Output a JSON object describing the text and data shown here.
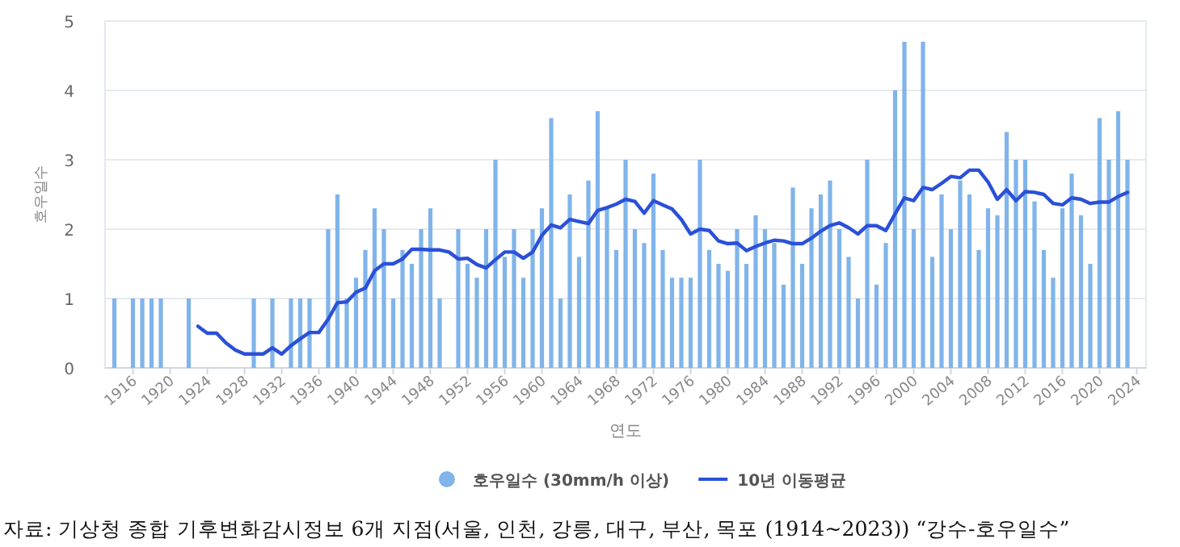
{
  "chart_data": {
    "type": "bar",
    "xlabel": "연도",
    "ylabel": "호우일수",
    "xlim": [
      1913,
      2025
    ],
    "xticks": [
      1916,
      1920,
      1924,
      1928,
      1932,
      1936,
      1940,
      1944,
      1948,
      1952,
      1956,
      1960,
      1964,
      1968,
      1972,
      1976,
      1980,
      1984,
      1988,
      1992,
      1996,
      2000,
      2004,
      2008,
      2012,
      2016,
      2020,
      2024
    ],
    "ylim": [
      0,
      5
    ],
    "yticks": [
      0,
      1,
      2,
      3,
      4,
      5
    ],
    "grid": "y",
    "legend": "bottom",
    "series": [
      {
        "name": "호우일수 (30mm/h 이상)",
        "color": "#80b4ea",
        "x": [
          1914,
          1916,
          1917,
          1918,
          1919,
          1922,
          1929,
          1931,
          1933,
          1934,
          1935,
          1937,
          1938,
          1939,
          1940,
          1941,
          1942,
          1943,
          1944,
          1945,
          1946,
          1947,
          1948,
          1949,
          1951,
          1952,
          1953,
          1954,
          1955,
          1956,
          1957,
          1958,
          1959,
          1960,
          1961,
          1962,
          1963,
          1964,
          1965,
          1966,
          1967,
          1968,
          1969,
          1970,
          1971,
          1972,
          1973,
          1974,
          1975,
          1976,
          1977,
          1978,
          1979,
          1980,
          1981,
          1982,
          1983,
          1984,
          1985,
          1986,
          1987,
          1988,
          1989,
          1990,
          1991,
          1992,
          1993,
          1994,
          1995,
          1996,
          1997,
          1998,
          1999,
          2000,
          2001,
          2002,
          2003,
          2004,
          2005,
          2006,
          2007,
          2008,
          2009,
          2010,
          2011,
          2012,
          2013,
          2014,
          2015,
          2016,
          2017,
          2018,
          2019,
          2020,
          2021,
          2022,
          2023
        ],
        "values": [
          1,
          1,
          1,
          1,
          1,
          1,
          1,
          1,
          1,
          1,
          1,
          2,
          2.5,
          1,
          1.3,
          1.7,
          2.3,
          2,
          1,
          1.7,
          1.5,
          2,
          2.3,
          1,
          2,
          1.5,
          1.3,
          2,
          3,
          1.6,
          2,
          1.3,
          2,
          2.3,
          3.6,
          1,
          2.5,
          1.6,
          2.7,
          3.7,
          2.3,
          1.7,
          3,
          2,
          1.8,
          2.8,
          1.7,
          1.3,
          1.3,
          1.3,
          3,
          1.7,
          1.5,
          1.4,
          2,
          1.5,
          2.2,
          2,
          1.8,
          1.2,
          2.6,
          1.5,
          2.3,
          2.5,
          2.7,
          2,
          1.6,
          1,
          3,
          1.2,
          1.8,
          4,
          4.7,
          2,
          4.7,
          1.6,
          2.5,
          2,
          2.7,
          2.5,
          1.7,
          2.3,
          2.2,
          3.4,
          3,
          3,
          2.4,
          1.7,
          1.3,
          2.3,
          2.8,
          2.2,
          1.5,
          3.6,
          3,
          3.7,
          3
        ]
      },
      {
        "name": "10년 이동평균",
        "type": "line",
        "color": "#2b50d8",
        "marker": "none",
        "x": [
          1923,
          1924,
          1925,
          1926,
          1927,
          1928,
          1929,
          1930,
          1931,
          1932,
          1933,
          1934,
          1935,
          1936,
          1937,
          1938,
          1939,
          1940,
          1941,
          1942,
          1943,
          1944,
          1945,
          1946,
          1947,
          1948,
          1949,
          1950,
          1951,
          1952,
          1953,
          1954,
          1955,
          1956,
          1957,
          1958,
          1959,
          1960,
          1961,
          1962,
          1963,
          1964,
          1965,
          1966,
          1967,
          1968,
          1969,
          1970,
          1971,
          1972,
          1973,
          1974,
          1975,
          1976,
          1977,
          1978,
          1979,
          1980,
          1981,
          1982,
          1983,
          1984,
          1985,
          1986,
          1987,
          1988,
          1989,
          1990,
          1991,
          1992,
          1993,
          1994,
          1995,
          1996,
          1997,
          1998,
          1999,
          2000,
          2001,
          2002,
          2003,
          2004,
          2005,
          2006,
          2007,
          2008,
          2009,
          2010,
          2011,
          2012,
          2013,
          2014,
          2015,
          2016,
          2017,
          2018,
          2019,
          2020,
          2021,
          2022,
          2023
        ],
        "values": [
          0.6,
          0.5,
          0.5,
          0.36,
          0.26,
          0.2,
          0.2,
          0.2,
          0.29,
          0.2,
          0.32,
          0.42,
          0.51,
          0.51,
          0.7,
          0.94,
          0.95,
          1.09,
          1.15,
          1.4,
          1.5,
          1.5,
          1.57,
          1.71,
          1.71,
          1.7,
          1.7,
          1.67,
          1.57,
          1.58,
          1.49,
          1.44,
          1.56,
          1.67,
          1.67,
          1.58,
          1.67,
          1.91,
          2.06,
          2.02,
          2.14,
          2.11,
          2.08,
          2.27,
          2.31,
          2.36,
          2.43,
          2.4,
          2.23,
          2.41,
          2.35,
          2.29,
          2.14,
          1.93,
          2.0,
          1.98,
          1.83,
          1.79,
          1.8,
          1.69,
          1.75,
          1.8,
          1.84,
          1.83,
          1.79,
          1.79,
          1.87,
          1.97,
          2.05,
          2.09,
          2.02,
          1.93,
          2.05,
          2.05,
          1.98,
          2.22,
          2.45,
          2.41,
          2.6,
          2.57,
          2.66,
          2.76,
          2.74,
          2.85,
          2.85,
          2.68,
          2.43,
          2.57,
          2.41,
          2.54,
          2.53,
          2.5,
          2.37,
          2.35,
          2.45,
          2.43,
          2.37,
          2.39,
          2.39,
          2.47,
          2.53
        ]
      }
    ],
    "annotations": [
      "자료: 기상청 종합 기후변화감시정보 6개 지점(서울, 인천, 강릉, 대구, 부산, 목포 (1914~2023)) “강수-호우일수”"
    ]
  }
}
